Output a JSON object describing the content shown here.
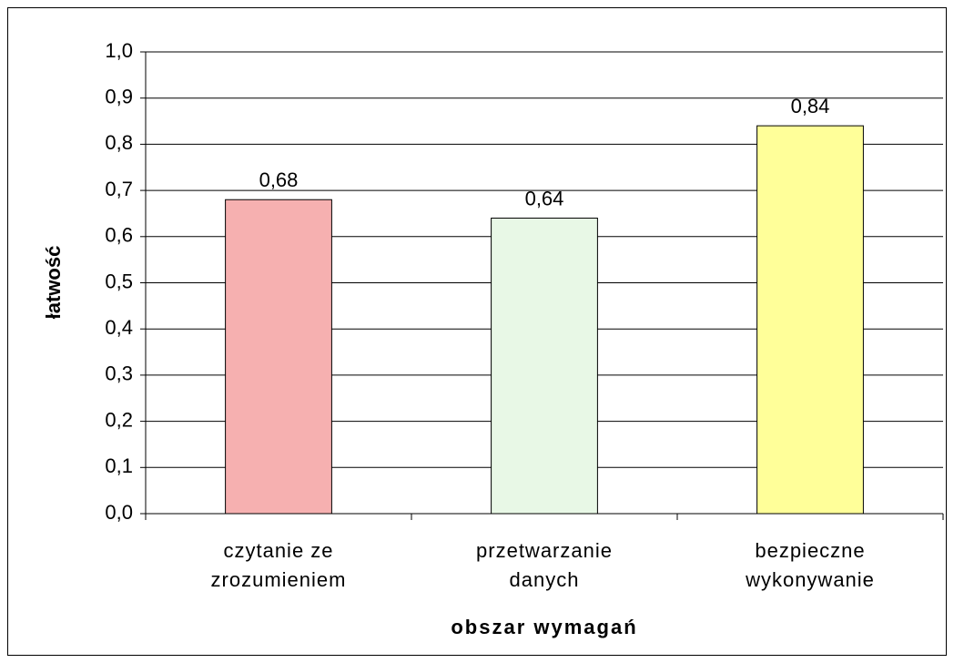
{
  "chart_data": {
    "type": "bar",
    "categories": [
      "czytanie ze\nzrozumieniem",
      "przetwarzanie\ndanych",
      "bezpieczne\nwykonywanie"
    ],
    "values": [
      0.68,
      0.64,
      0.84
    ],
    "value_labels": [
      "0,68",
      "0,64",
      "0,84"
    ],
    "colors": [
      "#f6b0b0",
      "#e8f8e6",
      "#ffff99"
    ],
    "xlabel": "obszar wymagań",
    "ylabel": "łatwość",
    "ylim": [
      0,
      1
    ],
    "yticks": [
      {
        "value": 0,
        "label": "0,0"
      },
      {
        "value": 0.1,
        "label": "0,1"
      },
      {
        "value": 0.2,
        "label": "0,2"
      },
      {
        "value": 0.3,
        "label": "0,3"
      },
      {
        "value": 0.4,
        "label": "0,4"
      },
      {
        "value": 0.5,
        "label": "0,5"
      },
      {
        "value": 0.6,
        "label": "0,6"
      },
      {
        "value": 0.7,
        "label": "0,7"
      },
      {
        "value": 0.8,
        "label": "0,8"
      },
      {
        "value": 0.9,
        "label": "0,9"
      },
      {
        "value": 1,
        "label": "1,0"
      }
    ],
    "grid": true
  }
}
